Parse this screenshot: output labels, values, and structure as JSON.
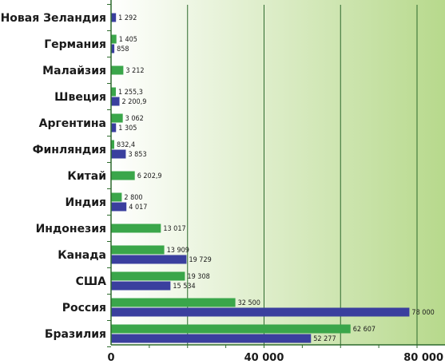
{
  "chart_data": {
    "type": "bar",
    "orientation": "horizontal",
    "categories": [
      "Новая Зеландия",
      "Германия",
      "Малайзия",
      "Швеция",
      "Аргентина",
      "Финляндия",
      "Китай",
      "Индия",
      "Индонезия",
      "Канада",
      "США",
      "Россия",
      "Бразилия"
    ],
    "series": [
      {
        "color": "#3aa64a",
        "values": [
          null,
          1405,
          3212,
          1255.3,
          3062,
          832.4,
          6202.9,
          2800,
          13017,
          13909,
          19308,
          32500,
          62607
        ],
        "labels": [
          "",
          "1 405",
          "3 212",
          "1 255,3",
          "3 062",
          "832,4",
          "6 202,9",
          "2 800",
          "13 017",
          "13 909",
          "19 308",
          "32 500",
          "62 607"
        ]
      },
      {
        "color": "#3a3f9e",
        "values": [
          1292,
          858,
          null,
          2200.9,
          1305,
          3853,
          null,
          4017,
          null,
          19729,
          15534,
          78000,
          52277
        ],
        "labels": [
          "1 292",
          "858",
          "",
          "2 200,9",
          "1 305",
          "3 853",
          "",
          "4 017",
          "",
          "19 729",
          "15 534",
          "78 000",
          "52 277"
        ]
      }
    ],
    "xlim": [
      0,
      80000
    ],
    "xticks": [
      0,
      40000,
      80000
    ],
    "xtick_labels": [
      "0",
      "40 000",
      "80 000"
    ],
    "grid": true,
    "background_gradient": [
      "#ffffff",
      "#b7d98c"
    ]
  }
}
